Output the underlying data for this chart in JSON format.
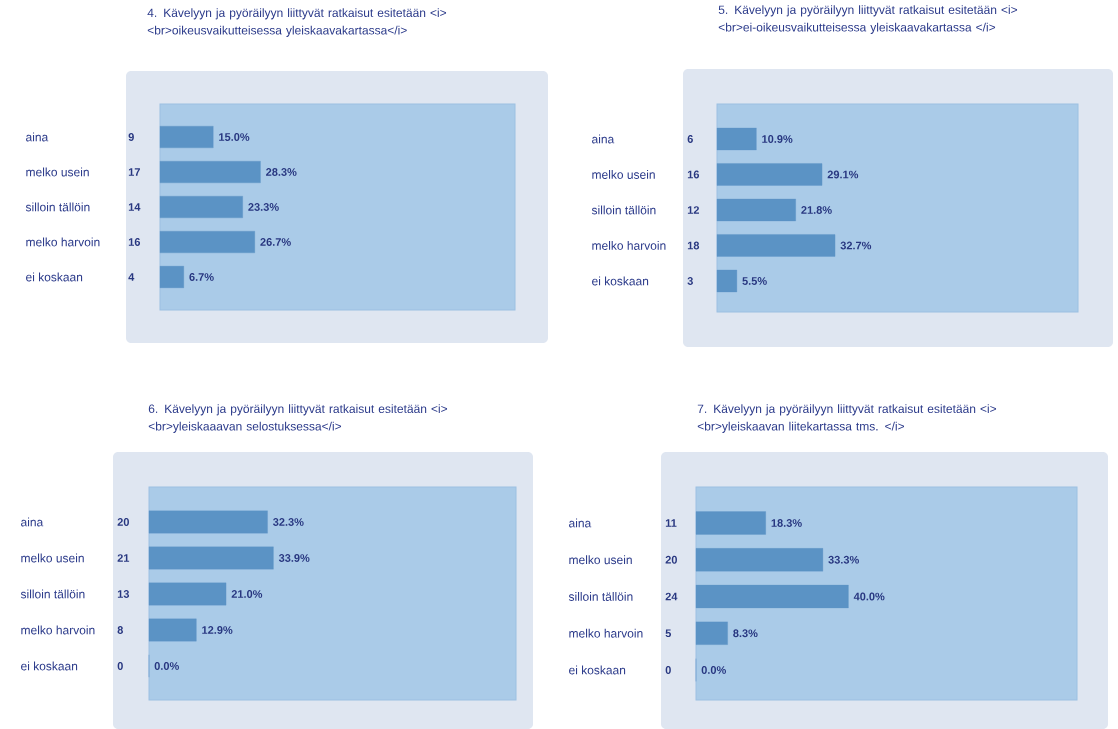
{
  "chart_data": [
    {
      "type": "bar",
      "orientation": "horizontal",
      "title": "4. Kävelyyn ja pyöräilyyn liittyvät ratkaisut esitetään <i> <br>oikeusvaikutteisessa yleiskaavakartassa</i>",
      "categories": [
        "aina",
        "melko usein",
        "silloin tällöin",
        "melko harvoin",
        "ei koskaan"
      ],
      "values": [
        15.0,
        28.3,
        23.3,
        26.7,
        6.7
      ],
      "color": "#5b93c5",
      "value_labels": [
        "15.0%",
        "28.3%",
        "23.3%",
        "26.7%",
        "6.7%"
      ],
      "annotations": [
        "9",
        "17",
        "14",
        "16",
        "4"
      ],
      "xlim": [
        0,
        100
      ],
      "tick_labels": "y"
    },
    {
      "type": "bar",
      "orientation": "horizontal",
      "title": "5. Kävelyyn ja pyöräilyyn liittyvät ratkaisut esitetään <i> <br>ei-oikeusvaikutteisessa yleiskaavakartassa </i>",
      "categories": [
        "aina",
        "melko usein",
        "silloin tällöin",
        "melko harvoin",
        "ei koskaan"
      ],
      "values": [
        10.9,
        29.1,
        21.8,
        32.7,
        5.5
      ],
      "color": "#5b93c5",
      "value_labels": [
        "10.9%",
        "29.1%",
        "21.8%",
        "32.7%",
        "5.5%"
      ],
      "annotations": [
        "6",
        "16",
        "12",
        "18",
        "3"
      ],
      "xlim": [
        0,
        100
      ],
      "tick_labels": "y"
    },
    {
      "type": "bar",
      "orientation": "horizontal",
      "title": "6. Kävelyyn ja pyöräilyyn liittyvät ratkaisut esitetään <i> <br>yleiskaaavan selostuksessa</i>",
      "categories": [
        "aina",
        "melko usein",
        "silloin tällöin",
        "melko harvoin",
        "ei koskaan"
      ],
      "values": [
        32.3,
        33.9,
        21.0,
        12.9,
        0.0
      ],
      "color": "#5b93c5",
      "value_labels": [
        "32.3%",
        "33.9%",
        "21.0%",
        "12.9%",
        "0.0%"
      ],
      "annotations": [
        "20",
        "21",
        "13",
        "8",
        "0"
      ],
      "xlim": [
        0,
        100
      ],
      "tick_labels": "y"
    },
    {
      "type": "bar",
      "orientation": "horizontal",
      "title": "7. Kävelyyn ja pyöräilyyn liittyvät ratkaisut esitetään <i> <br>yleiskaavan liitekartassa tms. </i>",
      "categories": [
        "aina",
        "melko usein",
        "silloin tällöin",
        "melko harvoin",
        "ei koskaan"
      ],
      "values": [
        18.3,
        33.3,
        40.0,
        8.3,
        0.0
      ],
      "color": "#5b93c5",
      "value_labels": [
        "18.3%",
        "33.3%",
        "40.0%",
        "8.3%",
        "0.0%"
      ],
      "annotations": [
        "11",
        "20",
        "24",
        "5",
        "0"
      ],
      "xlim": [
        0,
        100
      ],
      "tick_labels": "y"
    }
  ]
}
